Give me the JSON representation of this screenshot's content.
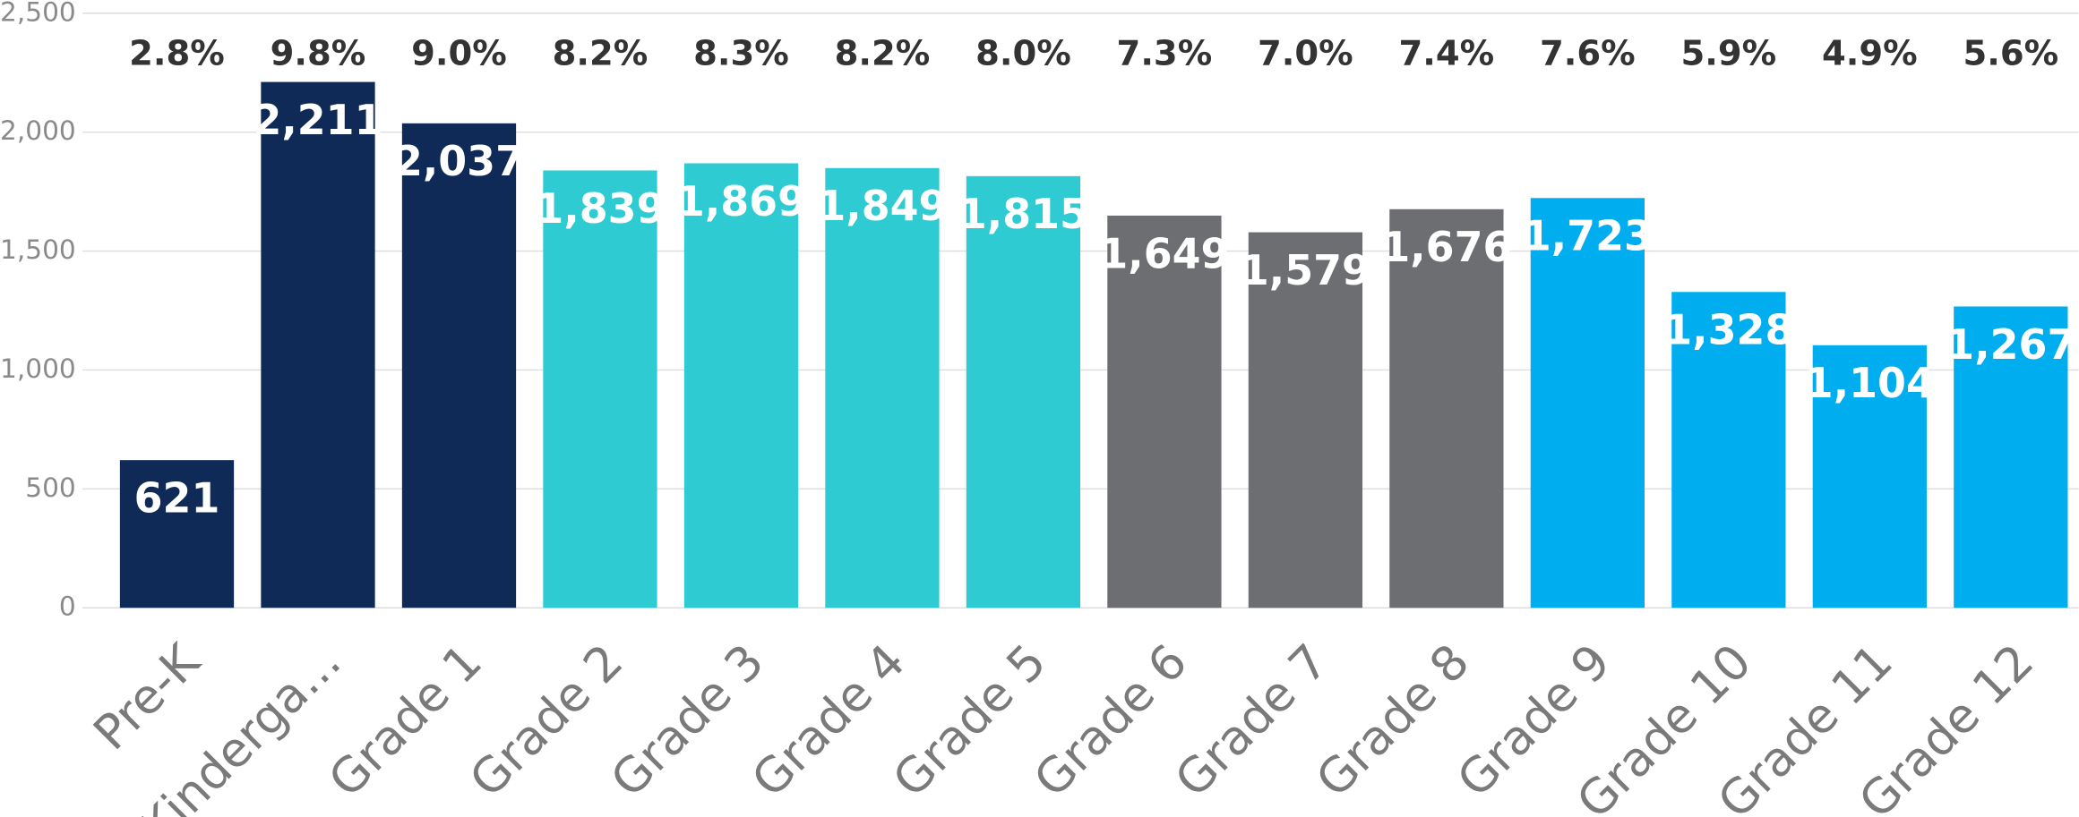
{
  "chart_data": {
    "type": "bar",
    "categories": [
      "Pre-K",
      "Kinderga...",
      "Grade 1",
      "Grade 2",
      "Grade 3",
      "Grade 4",
      "Grade 5",
      "Grade 6",
      "Grade 7",
      "Grade 8",
      "Grade 9",
      "Grade 10",
      "Grade 11",
      "Grade 12"
    ],
    "values": [
      621,
      2211,
      2037,
      1839,
      1869,
      1849,
      1815,
      1649,
      1579,
      1676,
      1723,
      1328,
      1104,
      1267
    ],
    "value_labels": [
      "621",
      "2,211",
      "2,037",
      "1,839",
      "1,869",
      "1,849",
      "1,815",
      "1,649",
      "1,579",
      "1,676",
      "1,723",
      "1,328",
      "1,104",
      "1,267"
    ],
    "colors": [
      "#0f2a56",
      "#0f2a56",
      "#0f2a56",
      "#2ecbd3",
      "#2ecbd3",
      "#2ecbd3",
      "#2ecbd3",
      "#6d6e71",
      "#6d6e71",
      "#6d6e71",
      "#00adef",
      "#00adef",
      "#00adef",
      "#00adef"
    ],
    "percentages": {
      "values": [
        2.8,
        9.8,
        9.0,
        8.2,
        8.3,
        8.2,
        8.0,
        7.3,
        7.0,
        7.4,
        7.6,
        5.9,
        4.9,
        5.6
      ],
      "value_labels": [
        "2.8%",
        "9.8%",
        "9.0%",
        "8.2%",
        "8.3%",
        "8.2%",
        "8.0%",
        "7.3%",
        "7.0%",
        "7.4%",
        "7.6%",
        "5.9%",
        "4.9%",
        "5.6%"
      ]
    },
    "ylim": [
      0,
      2500
    ],
    "yticks": [
      0,
      500,
      {
        "value": 1000,
        "label": "1,000"
      },
      {
        "value": 1500,
        "label": "1,500"
      },
      {
        "value": 2000,
        "label": "2,000"
      },
      {
        "value": 2500,
        "label": "2,500"
      }
    ],
    "grid": true
  }
}
